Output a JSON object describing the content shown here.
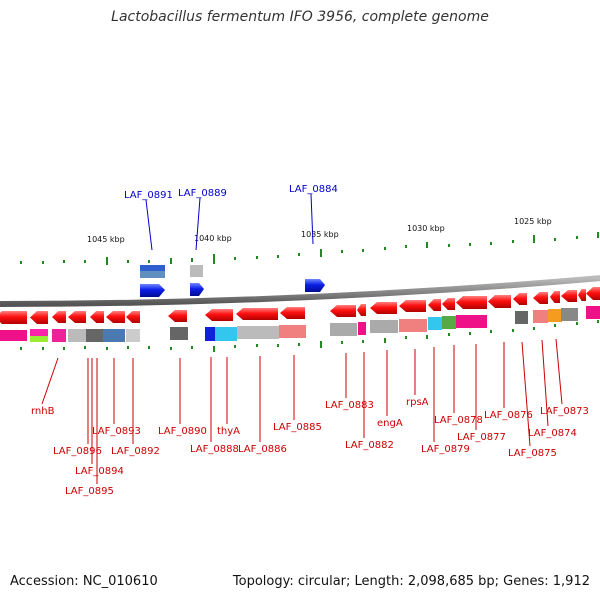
{
  "title": "Lactobacillus fermentum IFO 3956, complete genome",
  "footer": {
    "accession": "Accession: NC_010610",
    "summary": "Topology: circular; Length: 2,098,685 bp; Genes: 1,912"
  },
  "scale_ticks": [
    "1045 kbp",
    "1040 kbp",
    "1035 kbp",
    "1030 kbp",
    "1025 kbp"
  ],
  "upper_labels": [
    "LAF_0891",
    "LAF_0889",
    "LAF_0884"
  ],
  "lower_labels": [
    "rnhB",
    "LAF_0896",
    "LAF_0894",
    "LAF_0895",
    "LAF_0893",
    "LAF_0892",
    "LAF_0890",
    "LAF_0888",
    "thyA",
    "LAF_0886",
    "LAF_0885",
    "LAF_0883",
    "LAF_0882",
    "engA",
    "rpsA",
    "LAF_0879",
    "LAF_0878",
    "LAF_0877",
    "LAF_0876",
    "LAF_0875",
    "LAF_0874",
    "LAF_0873"
  ],
  "colors": {
    "forward_gene": "#1030e0",
    "reverse_gene": "#ee1111",
    "upper_label": "#0000cc",
    "lower_label": "#cc0000",
    "backbone": "#888888",
    "gc_tick": "#228822"
  }
}
